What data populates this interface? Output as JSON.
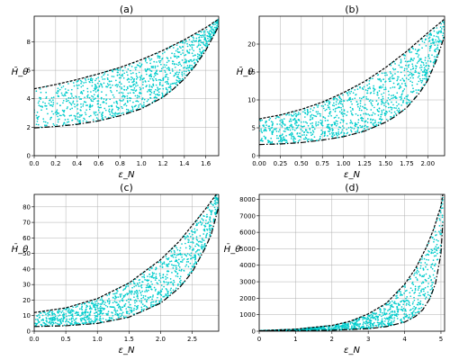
{
  "colors": {
    "scatter": "#00cccc",
    "envelope": "#000000",
    "grid": "#b0b0b0"
  },
  "chart_data": [
    {
      "type": "scatter",
      "title": "(a)",
      "xlabel": "ε_N",
      "ylabel": "H̄_θ",
      "xlim": [
        0,
        1.72
      ],
      "ylim": [
        0,
        9.8
      ],
      "xticks": [
        0.0,
        0.2,
        0.4,
        0.6,
        0.8,
        1.0,
        1.2,
        1.4,
        1.6
      ],
      "xtick_labels": [
        "0.0",
        "0.2",
        "0.4",
        "0.6",
        "0.8",
        "1.0",
        "1.2",
        "1.4",
        "1.6"
      ],
      "yticks": [
        0,
        2,
        4,
        6,
        8
      ],
      "ytick_labels": [
        "0",
        "2",
        "4",
        "6",
        "8"
      ],
      "grid": true,
      "upper_envelope": {
        "x": [
          0,
          0.2,
          0.4,
          0.6,
          0.8,
          1.0,
          1.2,
          1.4,
          1.6,
          1.72
        ],
        "y": [
          4.7,
          5.0,
          5.35,
          5.75,
          6.2,
          6.75,
          7.4,
          8.15,
          9.0,
          9.6
        ]
      },
      "lower_envelope": {
        "x": [
          0,
          0.2,
          0.4,
          0.6,
          0.8,
          1.0,
          1.2,
          1.3,
          1.4,
          1.5,
          1.6,
          1.72
        ],
        "y": [
          1.95,
          2.05,
          2.2,
          2.45,
          2.8,
          3.3,
          4.1,
          4.7,
          5.4,
          6.3,
          7.4,
          9.1
        ]
      },
      "point_count": 1100
    },
    {
      "type": "scatter",
      "title": "(b)",
      "xlabel": "ε_N",
      "ylabel": "H̄_θ",
      "xlim": [
        0,
        2.2
      ],
      "ylim": [
        0,
        25
      ],
      "xticks": [
        0.0,
        0.25,
        0.5,
        0.75,
        1.0,
        1.25,
        1.5,
        1.75,
        2.0
      ],
      "xtick_labels": [
        "0.00",
        "0.25",
        "0.50",
        "0.75",
        "1.00",
        "1.25",
        "1.50",
        "1.75",
        "2.00"
      ],
      "yticks": [
        0,
        5,
        10,
        15,
        20
      ],
      "ytick_labels": [
        "0",
        "5",
        "10",
        "15",
        "20"
      ],
      "grid": true,
      "upper_envelope": {
        "x": [
          0,
          0.25,
          0.5,
          0.75,
          1.0,
          1.25,
          1.5,
          1.75,
          2.0,
          2.2
        ],
        "y": [
          6.6,
          7.3,
          8.3,
          9.6,
          11.3,
          13.3,
          15.8,
          18.7,
          22.0,
          24.5
        ]
      },
      "lower_envelope": {
        "x": [
          0,
          0.25,
          0.5,
          0.75,
          1.0,
          1.25,
          1.5,
          1.6,
          1.75,
          1.9,
          2.0,
          2.1,
          2.2
        ],
        "y": [
          2.0,
          2.1,
          2.35,
          2.8,
          3.4,
          4.4,
          6.0,
          6.9,
          8.6,
          11.2,
          13.5,
          17.0,
          21.5
        ]
      },
      "point_count": 1100
    },
    {
      "type": "scatter",
      "title": "(c)",
      "xlabel": "ε_N",
      "ylabel": "H̄_θ",
      "xlim": [
        0,
        2.92
      ],
      "ylim": [
        0,
        88
      ],
      "xticks": [
        0.0,
        0.5,
        1.0,
        1.5,
        2.0,
        2.5
      ],
      "xtick_labels": [
        "0.0",
        "0.5",
        "1.0",
        "1.5",
        "2.0",
        "2.5"
      ],
      "yticks": [
        0,
        10,
        20,
        30,
        40,
        50,
        60,
        70,
        80
      ],
      "ytick_labels": [
        "0",
        "10",
        "20",
        "30",
        "40",
        "50",
        "60",
        "70",
        "80"
      ],
      "grid": true,
      "upper_envelope": {
        "x": [
          0,
          0.5,
          1.0,
          1.5,
          2.0,
          2.3,
          2.5,
          2.7,
          2.9
        ],
        "y": [
          12,
          15,
          21,
          31,
          46,
          58,
          68,
          78,
          89
        ]
      },
      "lower_envelope": {
        "x": [
          0,
          0.5,
          1.0,
          1.5,
          2.0,
          2.3,
          2.5,
          2.7,
          2.8,
          2.92
        ],
        "y": [
          3,
          3.5,
          5,
          9,
          18,
          28,
          38,
          53,
          62,
          80
        ]
      },
      "point_count": 1100
    },
    {
      "type": "scatter",
      "title": "(d)",
      "xlabel": "ε_N",
      "ylabel": "H̄_θ",
      "xlim": [
        0,
        5.1
      ],
      "ylim": [
        0,
        8300
      ],
      "xticks": [
        0,
        1,
        2,
        3,
        4,
        5
      ],
      "xtick_labels": [
        "0",
        "1",
        "2",
        "3",
        "4",
        "5"
      ],
      "yticks": [
        0,
        1000,
        2000,
        3000,
        4000,
        5000,
        6000,
        7000,
        8000
      ],
      "ytick_labels": [
        "0",
        "1000",
        "2000",
        "3000",
        "4000",
        "5000",
        "6000",
        "7000",
        "8000"
      ],
      "grid": true,
      "upper_envelope": {
        "x": [
          0,
          1,
          2,
          2.5,
          3,
          3.5,
          4,
          4.3,
          4.6,
          4.8,
          5.0,
          5.05
        ],
        "y": [
          30,
          120,
          350,
          600,
          1050,
          1700,
          2850,
          3800,
          5100,
          6200,
          7600,
          8300
        ]
      },
      "lower_envelope": {
        "x": [
          0,
          1,
          2,
          3,
          3.5,
          4,
          4.3,
          4.5,
          4.7,
          4.85,
          5.0,
          5.05
        ],
        "y": [
          20,
          30,
          60,
          150,
          280,
          550,
          900,
          1300,
          2000,
          2900,
          4700,
          6600
        ]
      },
      "point_count": 1000
    }
  ]
}
